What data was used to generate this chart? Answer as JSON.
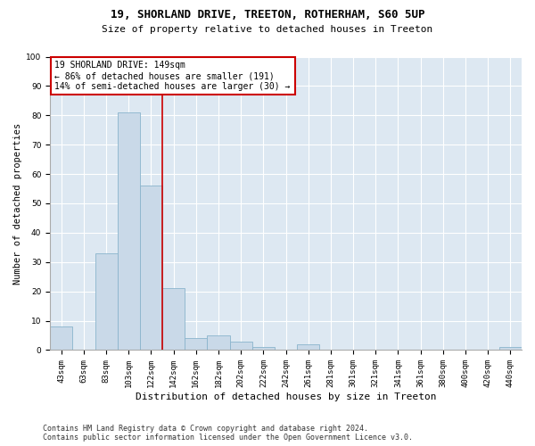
{
  "title1": "19, SHORLAND DRIVE, TREETON, ROTHERHAM, S60 5UP",
  "title2": "Size of property relative to detached houses in Treeton",
  "xlabel": "Distribution of detached houses by size in Treeton",
  "ylabel": "Number of detached properties",
  "footnote": "Contains HM Land Registry data © Crown copyright and database right 2024.\nContains public sector information licensed under the Open Government Licence v3.0.",
  "categories": [
    "43sqm",
    "63sqm",
    "83sqm",
    "103sqm",
    "122sqm",
    "142sqm",
    "162sqm",
    "182sqm",
    "202sqm",
    "222sqm",
    "242sqm",
    "261sqm",
    "281sqm",
    "301sqm",
    "321sqm",
    "341sqm",
    "361sqm",
    "380sqm",
    "400sqm",
    "420sqm",
    "440sqm"
  ],
  "values": [
    8,
    0,
    33,
    81,
    56,
    21,
    4,
    5,
    3,
    1,
    0,
    2,
    0,
    0,
    0,
    0,
    0,
    0,
    0,
    0,
    1
  ],
  "bar_color": "#c9d9e8",
  "bar_edge_color": "#8ab4cc",
  "annotation_text": "19 SHORLAND DRIVE: 149sqm\n← 86% of detached houses are smaller (191)\n14% of semi-detached houses are larger (30) →",
  "annotation_box_color": "#ffffff",
  "annotation_box_edge": "#cc0000",
  "vline_color": "#cc0000",
  "bg_color": "#dde8f2",
  "fig_bg_color": "#ffffff",
  "ylim": [
    0,
    100
  ],
  "yticks": [
    0,
    10,
    20,
    30,
    40,
    50,
    60,
    70,
    80,
    90,
    100
  ],
  "vline_x": 4.5,
  "title1_fontsize": 9,
  "title2_fontsize": 8,
  "ylabel_fontsize": 7.5,
  "xlabel_fontsize": 8,
  "tick_fontsize": 6.5,
  "ann_fontsize": 7,
  "footnote_fontsize": 6
}
